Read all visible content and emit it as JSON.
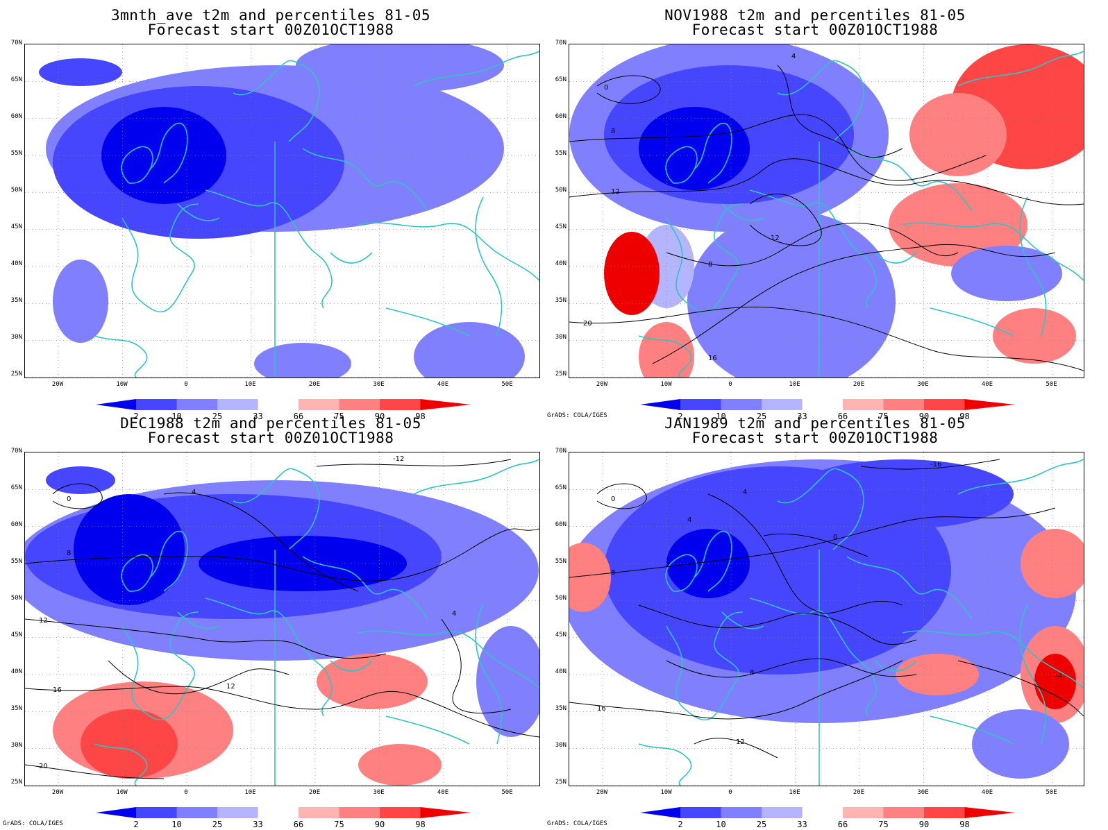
{
  "panels": [
    {
      "id": "p1",
      "title1": "3mnth_ave t2m and percentiles 81-05",
      "title2": "Forecast start 00Z01OCT1988",
      "credit": ""
    },
    {
      "id": "p2",
      "title1": "NOV1988 t2m and percentiles 81-05",
      "title2": "Forecast start 00Z01OCT1988",
      "credit": "GrADS: COLA/IGES"
    },
    {
      "id": "p3",
      "title1": "DEC1988 t2m and percentiles 81-05",
      "title2": "Forecast start 00Z01OCT1988",
      "credit": "GrADS: COLA/IGES"
    },
    {
      "id": "p4",
      "title1": "JAN1989 t2m and percentiles 81-05",
      "title2": "Forecast start 00Z01OCT1988",
      "credit": "GrADS: COLA/IGES"
    }
  ],
  "lat_labels": [
    "70N",
    "65N",
    "60N",
    "55N",
    "50N",
    "45N",
    "40N",
    "35N",
    "30N",
    "25N"
  ],
  "lon_labels": [
    "20W",
    "10W",
    "0",
    "10E",
    "20E",
    "30E",
    "40E",
    "50E"
  ],
  "colorbar": {
    "labels": [
      "2",
      "10",
      "25",
      "33",
      "66",
      "75",
      "90",
      "98"
    ],
    "colors": [
      "#0000ee",
      "#4646ff",
      "#8080ff",
      "#b4b4ff",
      "#ffffff",
      "#ffb4b4",
      "#ff8080",
      "#ff4646",
      "#ee0000"
    ]
  },
  "colors": {
    "coast": "#2ec4c4",
    "contour": "#000000",
    "background": "#ffffff"
  }
}
